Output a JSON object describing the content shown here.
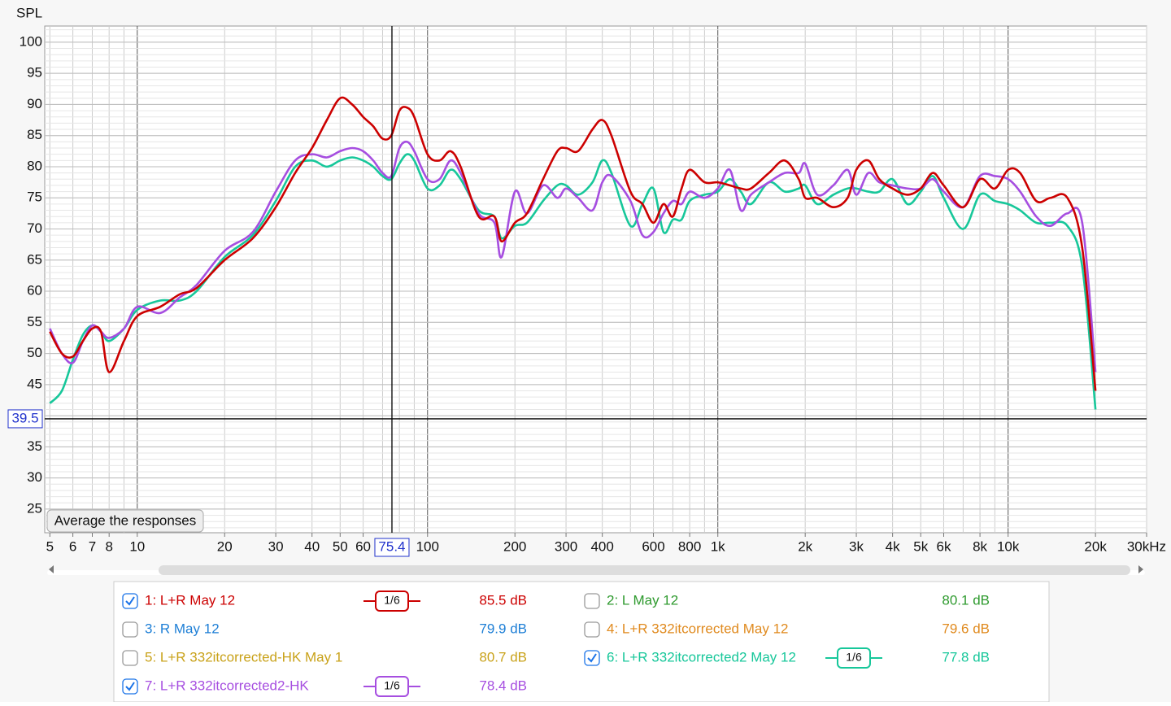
{
  "chart_data": {
    "type": "line",
    "y_label": "SPL",
    "button": "Average the responses",
    "xscale": "log",
    "xlim": [
      4.8,
      30000
    ],
    "ylim": [
      21.2,
      102.6
    ],
    "grid": true,
    "xticks": [
      5,
      6,
      7,
      8,
      10,
      20,
      30,
      40,
      50,
      60,
      100,
      200,
      300,
      400,
      600,
      800,
      {
        "value": 1000,
        "label": "1k"
      },
      {
        "value": 2000,
        "label": "2k"
      },
      {
        "value": 3000,
        "label": "3k"
      },
      {
        "value": 4000,
        "label": "4k"
      },
      {
        "value": 5000,
        "label": "5k"
      },
      {
        "value": 6000,
        "label": "6k"
      },
      {
        "value": 8000,
        "label": "8k"
      },
      {
        "value": 10000,
        "label": "10k"
      },
      {
        "value": 20000,
        "label": "20k"
      },
      {
        "value": 30000,
        "label": "30kHz"
      }
    ],
    "yticks": [
      25,
      30,
      35,
      40,
      45,
      50,
      55,
      60,
      65,
      70,
      75,
      80,
      85,
      90,
      95,
      100
    ],
    "cursor": {
      "x": 75.4,
      "y": 39.5
    },
    "x": [
      5,
      5.5,
      6,
      6.5,
      7,
      7.5,
      8,
      9,
      10,
      12,
      14,
      16,
      20,
      25,
      30,
      35,
      40,
      45,
      50,
      55,
      60,
      65,
      70,
      75,
      80,
      85,
      90,
      100,
      110,
      120,
      130,
      150,
      170,
      180,
      200,
      220,
      250,
      280,
      300,
      330,
      370,
      400,
      430,
      500,
      550,
      600,
      650,
      700,
      750,
      800,
      900,
      1000,
      1100,
      1200,
      1300,
      1500,
      1700,
      1900,
      2000,
      2200,
      2500,
      2800,
      3000,
      3300,
      3600,
      4000,
      4500,
      5000,
      5500,
      6000,
      7000,
      8000,
      9000,
      10000,
      11000,
      12500,
      14000,
      16000,
      18000,
      20000
    ],
    "series": [
      {
        "name": "1: L+R May 12",
        "color": "#cc0000",
        "checked": true,
        "smoothing": "1/6",
        "level": "85.5 dB",
        "values": [
          53.5,
          50,
          49.5,
          52,
          54,
          53.5,
          47,
          52,
          56,
          57.5,
          59.5,
          60.5,
          65,
          68.5,
          73.5,
          79,
          83,
          87.5,
          91,
          90,
          88,
          86.5,
          84.5,
          85,
          89,
          89.5,
          88,
          82,
          81,
          82.5,
          80,
          72,
          72,
          68,
          71,
          72.5,
          78,
          82.5,
          83,
          82.5,
          86,
          87.5,
          85,
          76,
          74,
          71,
          74,
          72,
          76.5,
          79.5,
          77.5,
          77.5,
          77,
          76.5,
          76.5,
          79,
          81,
          78,
          75,
          75,
          73.5,
          75,
          79.5,
          81,
          78,
          76.5,
          75.5,
          76.5,
          79,
          77,
          73.5,
          78,
          76.5,
          79.5,
          79,
          74.5,
          75,
          75,
          67,
          44
        ]
      },
      {
        "name": "2: L May 12",
        "color": "#2e9a2e",
        "checked": false,
        "level": "80.1 dB"
      },
      {
        "name": "3: R May 12",
        "color": "#1e7fd6",
        "checked": false,
        "level": "79.9 dB"
      },
      {
        "name": "4: L+R 332itcorrected May 12",
        "color": "#e08a1e",
        "checked": false,
        "level": "79.6 dB"
      },
      {
        "name": "5: L+R 332itcorrected-HK May 1",
        "color": "#c9a21a",
        "checked": false,
        "level": "80.7 dB"
      },
      {
        "name": "6: L+R 332itcorrected2 May 12",
        "color": "#17c79a",
        "checked": true,
        "smoothing": "1/6",
        "level": "77.8 dB",
        "values": [
          42,
          44,
          49,
          53,
          54.5,
          53.5,
          52,
          54,
          57,
          58.5,
          58.5,
          60,
          65.5,
          69,
          74.5,
          80,
          81,
          80,
          81,
          81.5,
          81,
          80,
          78.5,
          78,
          80.5,
          82,
          81,
          76.5,
          77,
          79.5,
          78,
          73,
          72,
          68.5,
          70.5,
          71,
          74.5,
          77,
          77,
          75.5,
          77.5,
          81,
          79,
          70.5,
          74,
          76.5,
          69.5,
          71.5,
          71.5,
          74.5,
          75.5,
          76,
          78,
          76,
          74,
          77.5,
          76,
          76.5,
          77,
          74,
          75.5,
          76.5,
          76.5,
          76,
          76,
          78,
          74,
          76,
          78.5,
          75,
          70,
          75.5,
          74.5,
          74,
          73,
          71,
          71,
          70.5,
          64,
          41
        ]
      },
      {
        "name": "7: L+R 332itcorrected2-HK",
        "color": "#a64ee0",
        "checked": true,
        "smoothing": "1/6",
        "level": "78.4 dB",
        "values": [
          54,
          50,
          48.5,
          52,
          54.5,
          53.5,
          52.5,
          54,
          57.5,
          56.5,
          59,
          61,
          66.5,
          69.5,
          76,
          81,
          82,
          81.5,
          82.5,
          83,
          82.5,
          81,
          79,
          78.5,
          83,
          84,
          82.5,
          78,
          78,
          81,
          79,
          72.5,
          71,
          65.5,
          76,
          72.5,
          77,
          75,
          76.5,
          75,
          73,
          77.5,
          78.5,
          74.5,
          69,
          69.5,
          72.5,
          74.5,
          74,
          76,
          75,
          76.5,
          79.5,
          73,
          75.5,
          77.5,
          79,
          79,
          80.5,
          75.5,
          77,
          79.5,
          75.5,
          79,
          77.5,
          77,
          76.5,
          76.5,
          78,
          76,
          73.5,
          78.5,
          78.5,
          78,
          76,
          72,
          70.5,
          72.5,
          71,
          47
        ]
      }
    ]
  }
}
